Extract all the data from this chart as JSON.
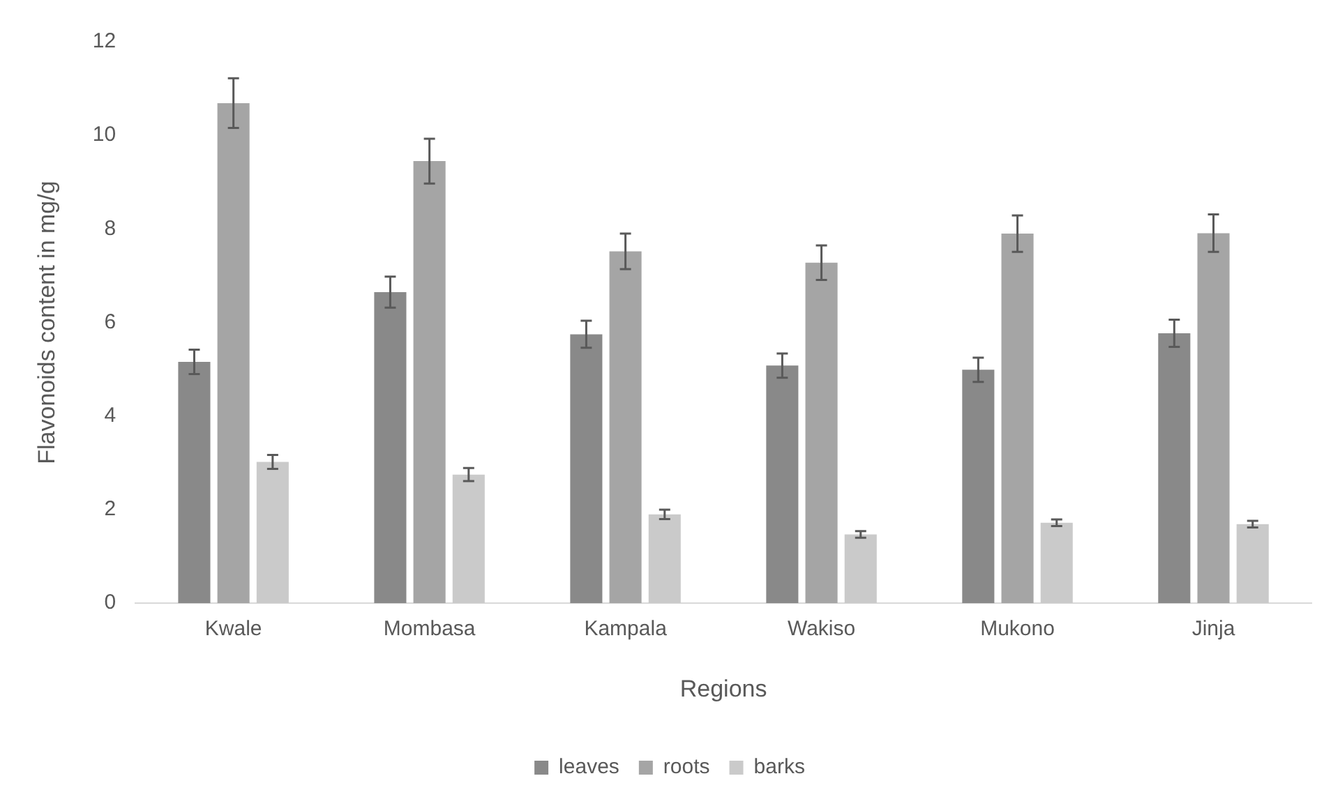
{
  "chart_data": {
    "type": "bar",
    "xlabel": "Regions",
    "ylabel": "Flavonoids content in mg/g",
    "categories": [
      "Kwale",
      "Mombasa",
      "Kampala",
      "Wakiso",
      "Mukono",
      "Jinja"
    ],
    "series": [
      {
        "name": "leaves",
        "color": "#898989",
        "values": [
          5.16,
          6.65,
          5.75,
          5.08,
          4.99,
          5.77
        ],
        "errors": [
          0.26,
          0.33,
          0.29,
          0.26,
          0.26,
          0.29
        ]
      },
      {
        "name": "roots",
        "color": "#a5a5a5",
        "values": [
          10.69,
          9.45,
          7.52,
          7.28,
          7.9,
          7.91
        ],
        "errors": [
          0.53,
          0.48,
          0.38,
          0.37,
          0.39,
          0.4
        ]
      },
      {
        "name": "barks",
        "color": "#cacaca",
        "values": [
          3.02,
          2.75,
          1.9,
          1.47,
          1.72,
          1.69
        ],
        "errors": [
          0.15,
          0.14,
          0.1,
          0.07,
          0.07,
          0.07
        ]
      }
    ],
    "ylim": [
      0,
      12
    ],
    "yticks": [
      0,
      2,
      4,
      6,
      8,
      10,
      12
    ],
    "grid": false,
    "legend": "bottom"
  }
}
